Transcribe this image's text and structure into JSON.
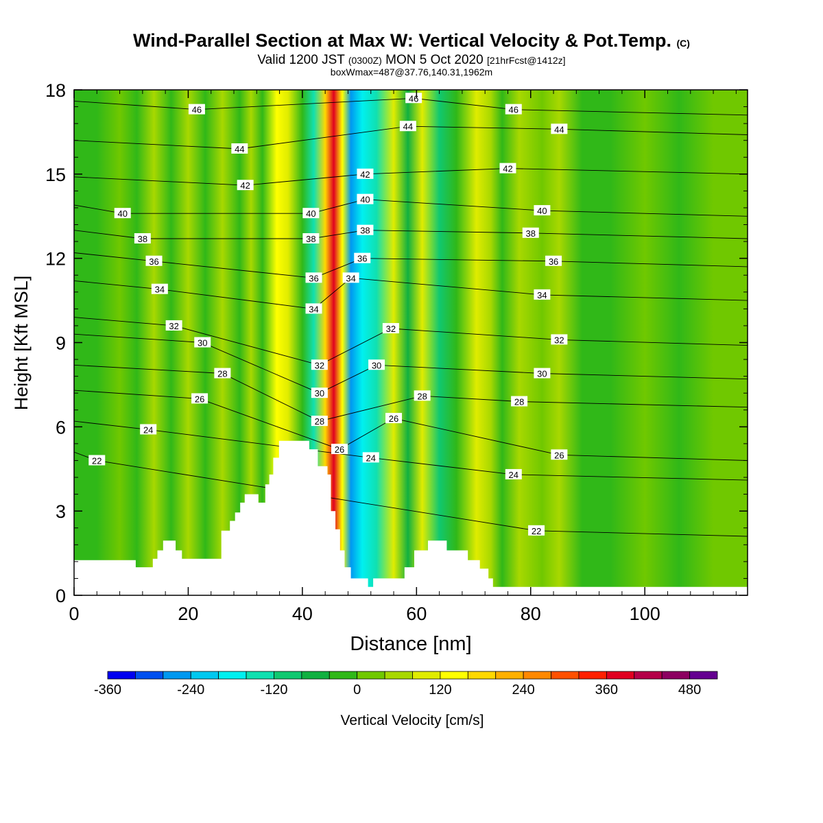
{
  "title": {
    "main": "Wind-Parallel Section at Max W: Vertical Velocity & Pot.Temp.",
    "main_suffix": "(C)",
    "valid_prefix": "Valid 1200 JST",
    "valid_utc": "(0300Z)",
    "valid_date": "MON 5 Oct 2020",
    "forecast": "[21hrFcst@1412z]",
    "boxwmax": "boxWmax=487@37.76,140.31,1962m"
  },
  "chart_data": {
    "type": "heatmap",
    "xlabel": "Distance [nm]",
    "ylabel": "Height [Kft MSL]",
    "xlim": [
      0,
      118
    ],
    "ylim": [
      0,
      18
    ],
    "x_ticks": [
      0,
      20,
      40,
      60,
      80,
      100
    ],
    "y_ticks": [
      0,
      3,
      6,
      9,
      12,
      15,
      18
    ],
    "colorbar": {
      "label": "Vertical Velocity [cm/s]",
      "levels": [
        -360,
        -320,
        -280,
        -240,
        -200,
        -160,
        -120,
        -80,
        -40,
        0,
        40,
        80,
        120,
        160,
        200,
        240,
        280,
        320,
        360,
        400,
        440,
        480,
        520
      ],
      "tick_labels": [
        -360,
        -240,
        -120,
        0,
        120,
        240,
        360,
        480
      ],
      "colors": [
        "#0000f0",
        "#0050f0",
        "#0098f0",
        "#00c8f0",
        "#00f0f0",
        "#10e0b0",
        "#10c870",
        "#10b040",
        "#30b818",
        "#70c800",
        "#a8d800",
        "#e0ec00",
        "#ffff00",
        "#ffd800",
        "#ffb000",
        "#ff8800",
        "#ff5000",
        "#ff2000",
        "#e00020",
        "#b40048",
        "#8c0060",
        "#640090"
      ]
    },
    "vertical_velocity_columns": [
      {
        "x": 4,
        "w": -10
      },
      {
        "x": 8,
        "w": 30
      },
      {
        "x": 11,
        "w": -10
      },
      {
        "x": 14,
        "w": 40
      },
      {
        "x": 17,
        "w": -30
      },
      {
        "x": 20,
        "w": 70
      },
      {
        "x": 23,
        "w": -40
      },
      {
        "x": 26,
        "w": 60
      },
      {
        "x": 29,
        "w": -30
      },
      {
        "x": 31,
        "w": 60
      },
      {
        "x": 33,
        "w": -20
      },
      {
        "x": 35.5,
        "w": 130
      },
      {
        "x": 37.5,
        "w": 110
      },
      {
        "x": 40,
        "w": -40
      },
      {
        "x": 42,
        "w": -140
      },
      {
        "x": 44,
        "w": 190
      },
      {
        "x": 45.5,
        "w": 380
      },
      {
        "x": 47,
        "w": 120
      },
      {
        "x": 48.5,
        "w": -250
      },
      {
        "x": 50.5,
        "w": -200
      },
      {
        "x": 53,
        "w": -130
      },
      {
        "x": 56,
        "w": 110
      },
      {
        "x": 58.5,
        "w": -60
      },
      {
        "x": 61,
        "w": 90
      },
      {
        "x": 64,
        "w": -90
      },
      {
        "x": 67,
        "w": -40
      },
      {
        "x": 70.5,
        "w": 100
      },
      {
        "x": 73,
        "w": 50
      },
      {
        "x": 75,
        "w": -30
      },
      {
        "x": 78,
        "w": 40
      },
      {
        "x": 82,
        "w": 20
      },
      {
        "x": 85,
        "w": 60
      },
      {
        "x": 89,
        "w": -20
      },
      {
        "x": 94,
        "w": -10
      },
      {
        "x": 100,
        "w": 20
      },
      {
        "x": 106,
        "w": -10
      },
      {
        "x": 112,
        "w": 10
      }
    ],
    "terrain": [
      [
        0,
        1.25
      ],
      [
        10.8,
        1.25
      ],
      [
        10.8,
        1.0
      ],
      [
        13.8,
        1.0
      ],
      [
        13.8,
        1.3
      ],
      [
        14.6,
        1.3
      ],
      [
        14.6,
        1.6
      ],
      [
        15.6,
        1.6
      ],
      [
        15.6,
        1.95
      ],
      [
        17.8,
        1.95
      ],
      [
        17.8,
        1.6
      ],
      [
        18.9,
        1.6
      ],
      [
        18.9,
        1.3
      ],
      [
        25.8,
        1.3
      ],
      [
        25.8,
        2.3
      ],
      [
        27.3,
        2.3
      ],
      [
        27.3,
        2.65
      ],
      [
        28.2,
        2.65
      ],
      [
        28.2,
        2.95
      ],
      [
        29.1,
        2.95
      ],
      [
        29.1,
        3.3
      ],
      [
        29.9,
        3.3
      ],
      [
        29.9,
        3.6
      ],
      [
        32.3,
        3.6
      ],
      [
        32.3,
        3.3
      ],
      [
        33.5,
        3.3
      ],
      [
        33.5,
        3.95
      ],
      [
        34.2,
        3.95
      ],
      [
        34.2,
        4.3
      ],
      [
        34.9,
        4.3
      ],
      [
        34.9,
        4.9
      ],
      [
        35.9,
        4.9
      ],
      [
        35.9,
        5.5
      ],
      [
        41.2,
        5.5
      ],
      [
        41.2,
        5.2
      ],
      [
        42.7,
        5.2
      ],
      [
        42.7,
        4.6
      ],
      [
        44.4,
        4.6
      ],
      [
        44.4,
        4.3
      ],
      [
        45.0,
        4.3
      ],
      [
        45.0,
        3.0
      ],
      [
        45.8,
        3.0
      ],
      [
        45.8,
        2.35
      ],
      [
        46.6,
        2.35
      ],
      [
        46.6,
        1.6
      ],
      [
        47.4,
        1.6
      ],
      [
        47.4,
        1.0
      ],
      [
        48.5,
        1.0
      ],
      [
        48.5,
        0.6
      ],
      [
        51.5,
        0.6
      ],
      [
        51.5,
        0.3
      ],
      [
        52.4,
        0.3
      ],
      [
        52.4,
        0.6
      ],
      [
        57.9,
        0.6
      ],
      [
        57.9,
        1.0
      ],
      [
        59.6,
        1.0
      ],
      [
        59.6,
        1.6
      ],
      [
        62.0,
        1.6
      ],
      [
        62.0,
        1.95
      ],
      [
        65.3,
        1.95
      ],
      [
        65.3,
        1.6
      ],
      [
        69.0,
        1.6
      ],
      [
        69.0,
        1.25
      ],
      [
        71.1,
        1.25
      ],
      [
        71.1,
        0.95
      ],
      [
        72.6,
        0.95
      ],
      [
        72.6,
        0.6
      ],
      [
        73.4,
        0.6
      ],
      [
        73.4,
        0.3
      ],
      [
        118,
        0.3
      ],
      [
        118,
        0
      ],
      [
        0,
        0
      ]
    ],
    "theta_contour_labels": [
      {
        "value": 22,
        "x": 4,
        "y": 4.8
      },
      {
        "value": 22,
        "x": 81,
        "y": 2.3
      },
      {
        "value": 24,
        "x": 13,
        "y": 5.9
      },
      {
        "value": 24,
        "x": 52,
        "y": 4.9
      },
      {
        "value": 24,
        "x": 77,
        "y": 4.3
      },
      {
        "value": 26,
        "x": 22,
        "y": 7.0
      },
      {
        "value": 26,
        "x": 46.5,
        "y": 5.2
      },
      {
        "value": 26,
        "x": 56,
        "y": 6.3
      },
      {
        "value": 26,
        "x": 85,
        "y": 5.0
      },
      {
        "value": 28,
        "x": 26,
        "y": 7.9
      },
      {
        "value": 28,
        "x": 43,
        "y": 6.2
      },
      {
        "value": 28,
        "x": 61,
        "y": 7.1
      },
      {
        "value": 28,
        "x": 78,
        "y": 6.9
      },
      {
        "value": 30,
        "x": 22.5,
        "y": 9.0
      },
      {
        "value": 30,
        "x": 43,
        "y": 7.2
      },
      {
        "value": 30,
        "x": 53,
        "y": 8.2
      },
      {
        "value": 30,
        "x": 82,
        "y": 7.9
      },
      {
        "value": 32,
        "x": 17.5,
        "y": 9.6
      },
      {
        "value": 32,
        "x": 43,
        "y": 8.2
      },
      {
        "value": 32,
        "x": 55.5,
        "y": 9.5
      },
      {
        "value": 32,
        "x": 85,
        "y": 9.1
      },
      {
        "value": 34,
        "x": 15,
        "y": 10.9
      },
      {
        "value": 34,
        "x": 42,
        "y": 10.2
      },
      {
        "value": 34,
        "x": 48.5,
        "y": 11.3
      },
      {
        "value": 34,
        "x": 82,
        "y": 10.7
      },
      {
        "value": 36,
        "x": 14,
        "y": 11.9
      },
      {
        "value": 36,
        "x": 42,
        "y": 11.3
      },
      {
        "value": 36,
        "x": 50.5,
        "y": 12.0
      },
      {
        "value": 36,
        "x": 84,
        "y": 11.9
      },
      {
        "value": 38,
        "x": 12,
        "y": 12.7
      },
      {
        "value": 38,
        "x": 41.5,
        "y": 12.7
      },
      {
        "value": 38,
        "x": 51,
        "y": 13.0
      },
      {
        "value": 38,
        "x": 80,
        "y": 12.9
      },
      {
        "value": 40,
        "x": 8.5,
        "y": 13.6
      },
      {
        "value": 40,
        "x": 41.5,
        "y": 13.6
      },
      {
        "value": 40,
        "x": 51,
        "y": 14.1
      },
      {
        "value": 40,
        "x": 82,
        "y": 13.7
      },
      {
        "value": 42,
        "x": 30,
        "y": 14.6
      },
      {
        "value": 42,
        "x": 51,
        "y": 15.0
      },
      {
        "value": 42,
        "x": 76,
        "y": 15.2
      },
      {
        "value": 44,
        "x": 29,
        "y": 15.9
      },
      {
        "value": 44,
        "x": 58.5,
        "y": 16.7
      },
      {
        "value": 44,
        "x": 85,
        "y": 16.6
      },
      {
        "value": 46,
        "x": 21.5,
        "y": 17.3
      },
      {
        "value": 46,
        "x": 59.5,
        "y": 17.7
      },
      {
        "value": 46,
        "x": 77,
        "y": 17.3
      }
    ]
  }
}
